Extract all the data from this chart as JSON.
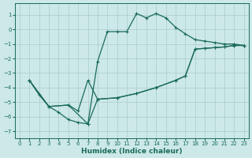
{
  "xlabel": "Humidex (Indice chaleur)",
  "ylabel": "",
  "background_color": "#cce8e8",
  "line_color": "#1a6b5a",
  "grid_color": "#aacccc",
  "xlim": [
    -0.5,
    23.5
  ],
  "ylim": [
    -7.5,
    1.8
  ],
  "yticks": [
    1,
    0,
    -1,
    -2,
    -3,
    -4,
    -5,
    -6,
    -7
  ],
  "xticks": [
    0,
    1,
    2,
    3,
    4,
    5,
    6,
    7,
    8,
    9,
    10,
    11,
    12,
    13,
    14,
    15,
    16,
    17,
    18,
    19,
    20,
    21,
    22,
    23
  ],
  "curve1_x": [
    1,
    2,
    3,
    4,
    5,
    6,
    7,
    8,
    9,
    10,
    11,
    12,
    13,
    14,
    15,
    16,
    17,
    18,
    19,
    20,
    21,
    22,
    23
  ],
  "curve1_y": [
    -3.5,
    -4.5,
    -5.3,
    -5.7,
    -6.2,
    -6.4,
    -6.5,
    -2.2,
    -0.15,
    -0.15,
    -0.15,
    1.1,
    0.8,
    1.1,
    0.8,
    0.15,
    -0.3,
    -0.7,
    -0.8,
    -0.9,
    -1.0,
    -1.0,
    -1.1
  ],
  "curve2_x": [
    1,
    3,
    5,
    6,
    7,
    8,
    10,
    12,
    14,
    16,
    17,
    18,
    19,
    20,
    21,
    22,
    23
  ],
  "curve2_y": [
    -3.5,
    -5.3,
    -5.2,
    -5.6,
    -3.5,
    -4.8,
    -4.7,
    -4.4,
    -4.0,
    -3.5,
    -3.2,
    -1.35,
    -1.3,
    -1.25,
    -1.2,
    -1.1,
    -1.1
  ],
  "curve3_x": [
    1,
    3,
    5,
    7,
    8,
    10,
    12,
    14,
    16,
    17,
    18,
    19,
    20,
    21,
    22,
    23
  ],
  "curve3_y": [
    -3.5,
    -5.3,
    -5.2,
    -6.5,
    -4.8,
    -4.7,
    -4.4,
    -4.0,
    -3.5,
    -3.2,
    -1.35,
    -1.3,
    -1.25,
    -1.2,
    -1.1,
    -1.1
  ]
}
